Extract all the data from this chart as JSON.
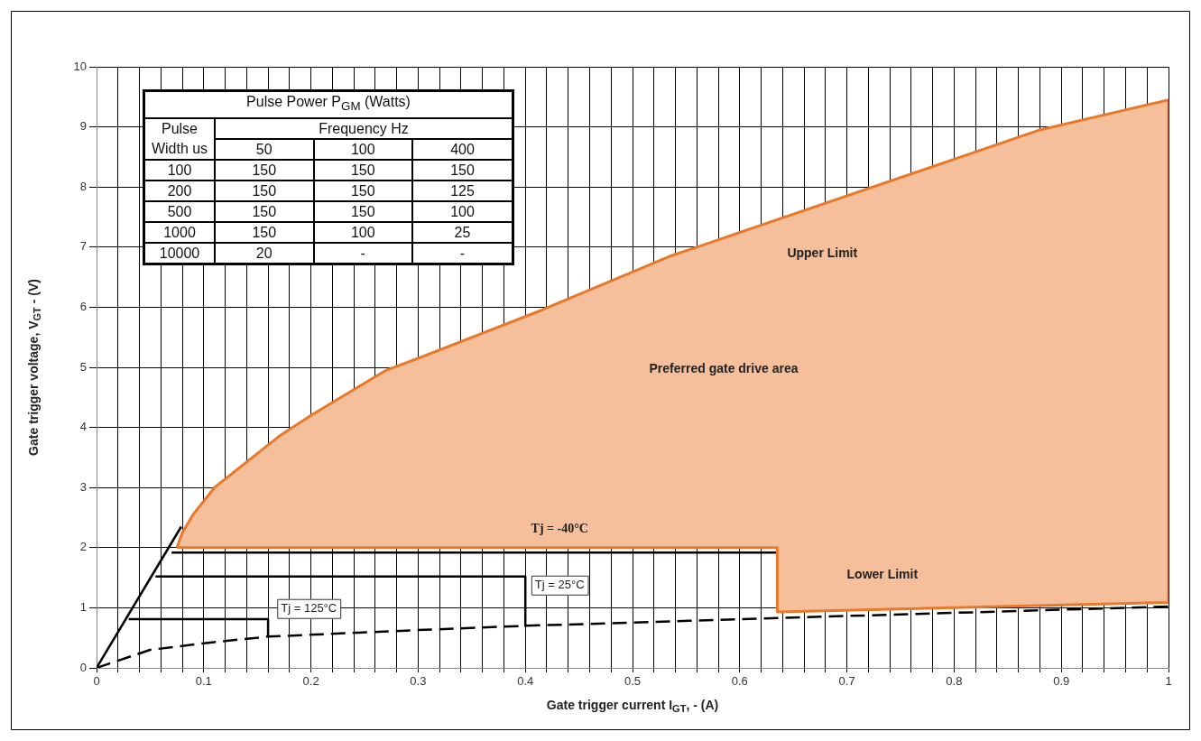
{
  "chart_data": [
    {
      "type": "line",
      "xlabel": "Gate trigger current I$_{GT}$, - (A)",
      "ylabel": "Gate trigger voltage, V$_{GT}$ - (V)",
      "xlim": [
        0,
        1
      ],
      "ylim": [
        0,
        10
      ],
      "xticks": [
        0,
        {
          "value": 0.02,
          "label": null
        },
        {
          "value": 0.04,
          "label": null
        },
        {
          "value": 0.06,
          "label": null
        },
        {
          "value": 0.08,
          "label": null
        },
        0.1,
        {
          "value": 0.12,
          "label": null
        },
        {
          "value": 0.14,
          "label": null
        },
        {
          "value": 0.16,
          "label": null
        },
        {
          "value": 0.18,
          "label": null
        },
        0.2,
        {
          "value": 0.22,
          "label": null
        },
        {
          "value": 0.24,
          "label": null
        },
        {
          "value": 0.26,
          "label": null
        },
        {
          "value": 0.28,
          "label": null
        },
        0.3,
        {
          "value": 0.32,
          "label": null
        },
        {
          "value": 0.34,
          "label": null
        },
        {
          "value": 0.36,
          "label": null
        },
        {
          "value": 0.38,
          "label": null
        },
        0.4,
        {
          "value": 0.42,
          "label": null
        },
        {
          "value": 0.44,
          "label": null
        },
        {
          "value": 0.46,
          "label": null
        },
        {
          "value": 0.48,
          "label": null
        },
        0.5,
        {
          "value": 0.52,
          "label": null
        },
        {
          "value": 0.54,
          "label": null
        },
        {
          "value": 0.56,
          "label": null
        },
        {
          "value": 0.58,
          "label": null
        },
        0.6,
        {
          "value": 0.62,
          "label": null
        },
        {
          "value": 0.64,
          "label": null
        },
        {
          "value": 0.66,
          "label": null
        },
        {
          "value": 0.68,
          "label": null
        },
        0.7,
        {
          "value": 0.72,
          "label": null
        },
        {
          "value": 0.74,
          "label": null
        },
        {
          "value": 0.76,
          "label": null
        },
        {
          "value": 0.78,
          "label": null
        },
        0.8,
        {
          "value": 0.82,
          "label": null
        },
        {
          "value": 0.84,
          "label": null
        },
        {
          "value": 0.86,
          "label": null
        },
        {
          "value": 0.88,
          "label": null
        },
        0.9,
        {
          "value": 0.92,
          "label": null
        },
        {
          "value": 0.94,
          "label": null
        },
        {
          "value": 0.96,
          "label": null
        },
        {
          "value": 0.98,
          "label": null
        },
        1
      ],
      "yticks": [
        0,
        1,
        2,
        3,
        4,
        5,
        6,
        7,
        8,
        9,
        10
      ],
      "grid": true,
      "legend": false,
      "marker": "none",
      "series": [
        {
          "type": "area",
          "color": "#e8792a",
          "x": [
            0.075,
            0.08,
            0.09,
            0.11,
            0.17,
            0.2,
            0.27,
            0.3,
            0.415,
            0.535,
            0.56,
            0.88,
            1,
            1,
            0.635,
            0.635,
            0.075
          ],
          "values": [
            2.0,
            2.25,
            2.55,
            3.0,
            3.85,
            4.2,
            4.95,
            5.15,
            5.95,
            6.85,
            7.0,
            8.95,
            9.45,
            1.09,
            0.93,
            2.0,
            2.0
          ]
        },
        {
          "color": "#000000",
          "x": [
            0,
            0.079
          ],
          "values": [
            0,
            2.35
          ]
        },
        {
          "color": "#000000",
          "x": [
            0.07,
            0.635
          ],
          "values": [
            1.92,
            1.92
          ]
        },
        {
          "color": "#000000",
          "x": [
            0.055,
            0.4,
            0.4
          ],
          "values": [
            1.52,
            1.52,
            0.7
          ]
        },
        {
          "color": "#000000",
          "x": [
            0.03,
            0.16,
            0.16
          ],
          "values": [
            0.81,
            0.81,
            0.53
          ]
        },
        {
          "color": "#000000",
          "line_style": "dashed",
          "x": [
            0,
            0.05,
            0.1,
            0.16,
            0.3,
            0.4,
            0.635,
            1
          ],
          "values": [
            0,
            0.3,
            0.41,
            0.52,
            0.63,
            0.7,
            0.83,
            1.02
          ]
        }
      ],
      "annotations": [
        "Tj = -40°C",
        "Tj = 25°C",
        "Tj = 125°C",
        "Upper Limit",
        "Preferred gate drive area",
        "Lower Limit"
      ]
    },
    {
      "type": "other",
      "title": "Pulse Power P$_{GM}$ (Watts)",
      "annotations": [
        "Pulse Width us",
        "Frequency Hz",
        "50",
        "100",
        "400",
        "100",
        "150",
        "150",
        "150",
        "200",
        "150",
        "150",
        "125",
        "500",
        "150",
        "150",
        "100",
        "1000",
        "150",
        "100",
        "25",
        "10000",
        "20",
        "-",
        "-"
      ]
    }
  ]
}
